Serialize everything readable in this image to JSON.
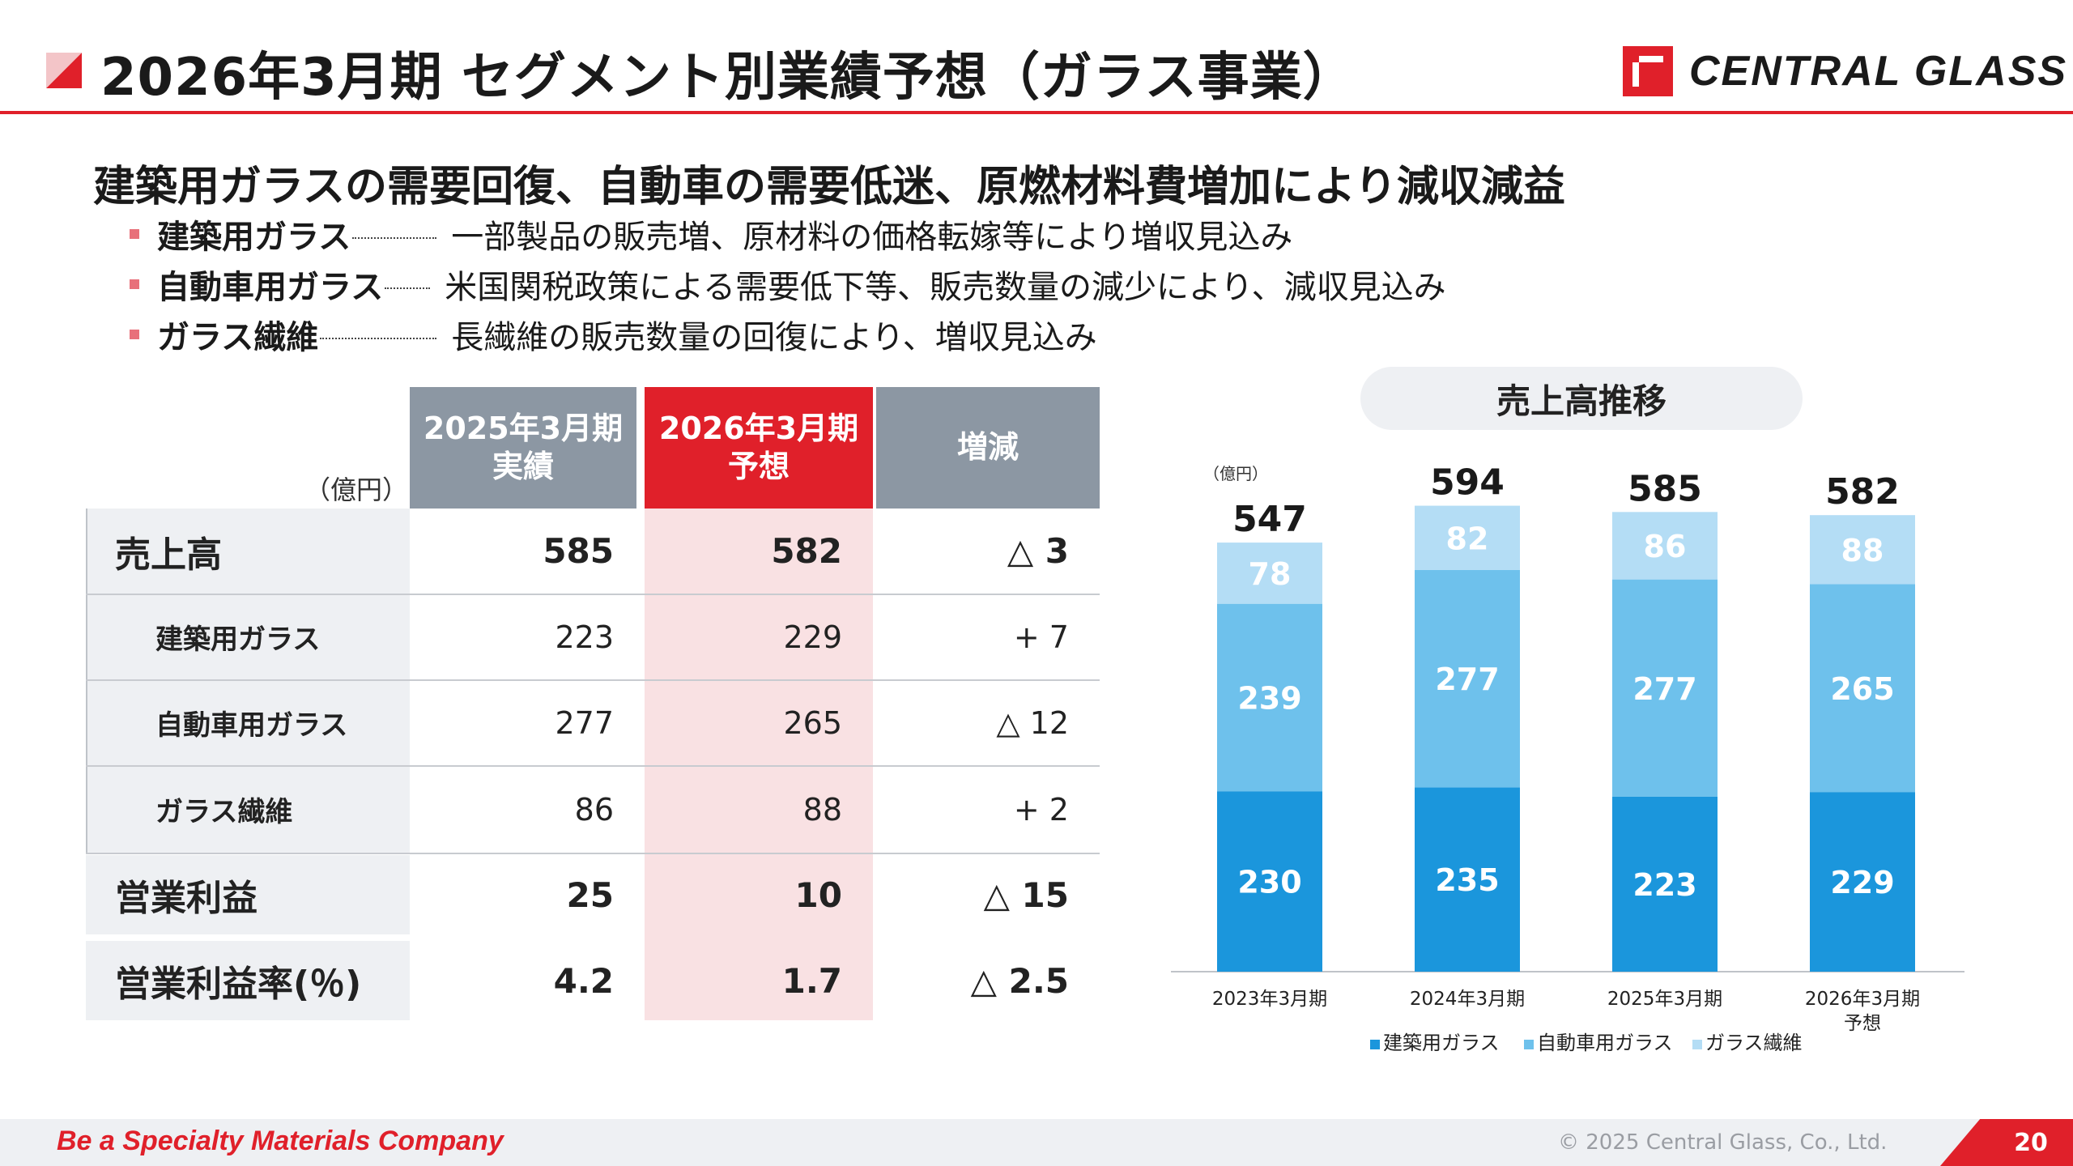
{
  "header": {
    "title": "2026年3月期 セグメント別業績予想（ガラス事業）",
    "logo_text": "CENTRAL GLASS"
  },
  "summary": {
    "headline": "建築用ガラスの需要回復、自動車の需要低迷、原燃材料費増加により減収減益",
    "bullets": [
      {
        "key": "建築用ガラス",
        "text": "一部製品の販売増、原材料の価格転嫁等により増収見込み"
      },
      {
        "key": "自動車用ガラス",
        "text": "米国関税政策による需要低下等、販売数量の減少により、減収見込み"
      },
      {
        "key": "ガラス繊維",
        "text": "長繊維の販売数量の回復により、増収見込み"
      }
    ]
  },
  "table": {
    "unit": "（億円）",
    "headers": [
      {
        "line1": "2025年3月期",
        "line2": "実績"
      },
      {
        "line1": "2026年3月期",
        "line2": "予想"
      },
      {
        "line1": "増減",
        "line2": ""
      }
    ],
    "rows": [
      {
        "label": "売上高",
        "fy2025": "585",
        "fy2026": "582",
        "diff": "△ 3"
      },
      {
        "label": "建築用ガラス",
        "fy2025": "223",
        "fy2026": "229",
        "diff": "+ 7"
      },
      {
        "label": "自動車用ガラス",
        "fy2025": "277",
        "fy2026": "265",
        "diff": "△ 12"
      },
      {
        "label": "ガラス繊維",
        "fy2025": "86",
        "fy2026": "88",
        "diff": "+ 2"
      },
      {
        "label": "営業利益",
        "fy2025": "25",
        "fy2026": "10",
        "diff": "△ 15"
      },
      {
        "label": "営業利益率(％)",
        "fy2025": "4.2",
        "fy2026": "1.7",
        "diff": "△ 2.5"
      }
    ]
  },
  "chart_data": {
    "type": "bar",
    "stacked": true,
    "title": "売上高推移",
    "unit_label": "（億円）",
    "categories": [
      "2023年3月期",
      "2024年3月期",
      "2025年3月期",
      "2026年3月期\n予想"
    ],
    "series": [
      {
        "name": "建築用ガラス",
        "values": [
          230,
          235,
          223,
          229
        ],
        "color": "#1b96dc"
      },
      {
        "name": "自動車用ガラス",
        "values": [
          239,
          277,
          277,
          265
        ],
        "color": "#6ec1ec"
      },
      {
        "name": "ガラス繊維",
        "values": [
          78,
          82,
          86,
          88
        ],
        "color": "#b4ddf5"
      }
    ],
    "totals": [
      547,
      594,
      585,
      582
    ],
    "ylim": [
      0,
      640
    ],
    "legend_position": "bottom"
  },
  "colors": {
    "accent_red": "#e0202a",
    "header_gray": "#8c97a3",
    "forecast_tint": "#f9e1e3",
    "label_bg": "#eef0f3"
  },
  "footer": {
    "tagline": "Be a Specialty Materials Company",
    "copyright": "© 2025 Central Glass, Co., Ltd.",
    "page": "20"
  }
}
